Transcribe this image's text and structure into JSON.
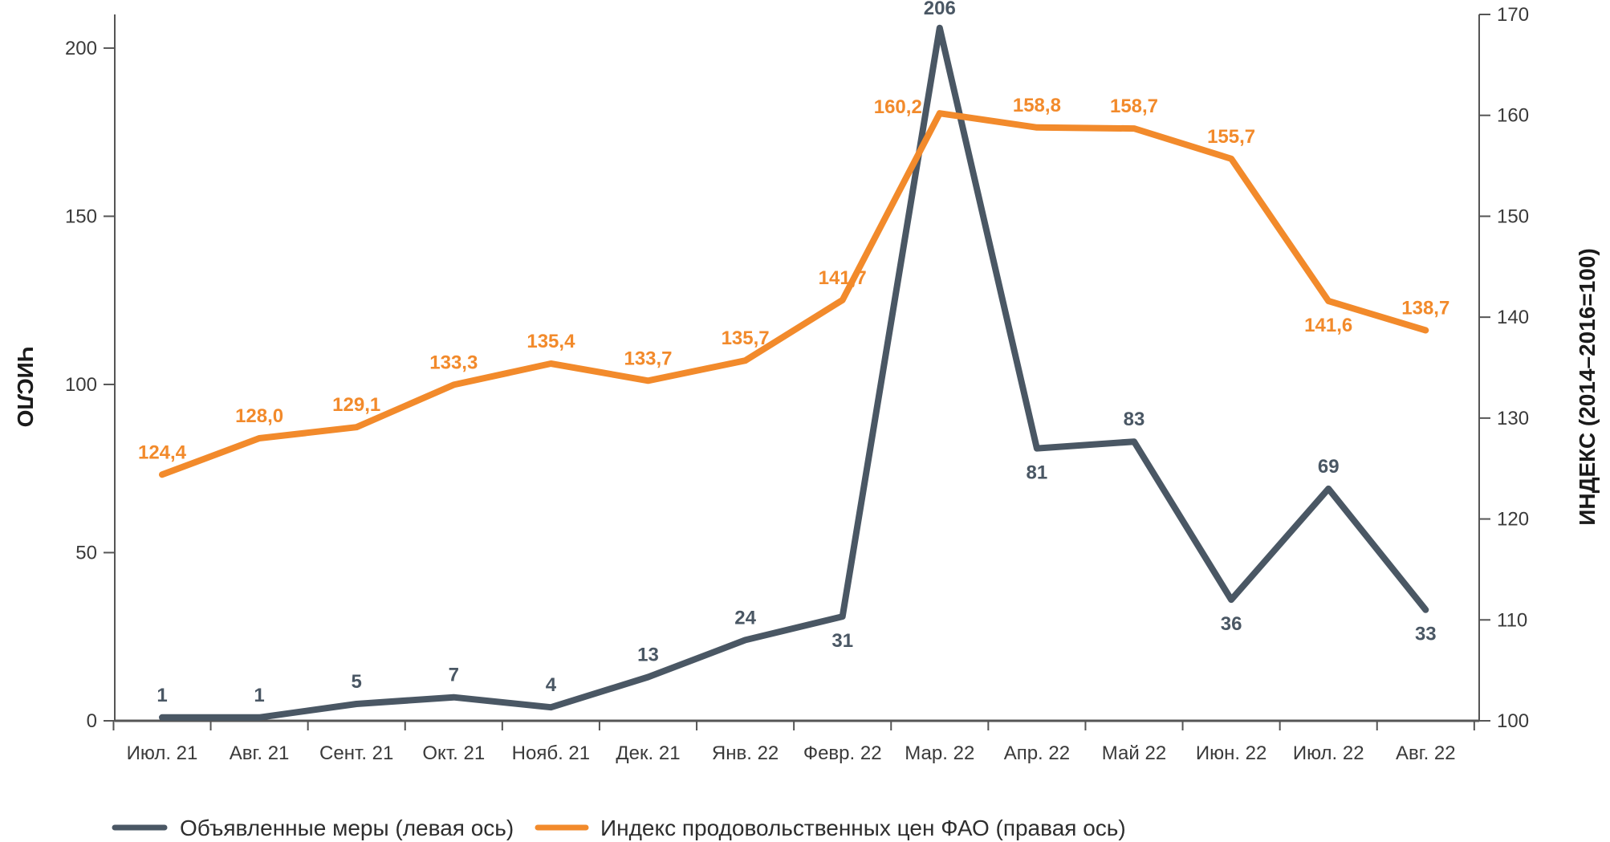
{
  "chart_data": {
    "type": "line",
    "categories": [
      "Июл. 21",
      "Авг. 21",
      "Сент. 21",
      "Окт. 21",
      "Нояб. 21",
      "Дек. 21",
      "Янв. 22",
      "Февр. 22",
      "Мар. 22",
      "Апр. 22",
      "Май 22",
      "Июн. 22",
      "Июл. 22",
      "Авг. 22"
    ],
    "series": [
      {
        "name": "Объявленные меры (левая ось)",
        "axis": "left",
        "color": "#4a5764",
        "values": [
          1,
          1,
          5,
          7,
          4,
          13,
          24,
          31,
          206,
          81,
          83,
          36,
          69,
          33
        ],
        "labels": [
          "1",
          "1",
          "5",
          "7",
          "4",
          "13",
          "24",
          "31",
          "206",
          "81",
          "83",
          "36",
          "69",
          "33"
        ],
        "label_pos": [
          "above",
          "above",
          "above",
          "above",
          "above",
          "above",
          "above",
          "below",
          "above",
          "below",
          "above",
          "below",
          "above",
          "below"
        ]
      },
      {
        "name": "Индекс продовольственных цен ФАО (правая ось)",
        "axis": "right",
        "color": "#f28a2b",
        "values": [
          124.4,
          128.0,
          129.1,
          133.3,
          135.4,
          133.7,
          135.7,
          141.7,
          160.2,
          158.8,
          158.7,
          155.7,
          141.6,
          138.7
        ],
        "labels": [
          "124,4",
          "128,0",
          "129,1",
          "133,3",
          "135,4",
          "133,7",
          "135,7",
          "141,7",
          "160,2",
          "158,8",
          "158,7",
          "155,7",
          "141,6",
          "138,7"
        ],
        "label_pos": [
          "above",
          "above",
          "above",
          "above",
          "above",
          "above",
          "above",
          "above",
          "left",
          "above",
          "above",
          "above",
          "below",
          "above"
        ]
      }
    ],
    "left_axis": {
      "title": "ЧИСЛО",
      "min": 0,
      "max": 210,
      "ticks": [
        0,
        50,
        100,
        150,
        200
      ],
      "tick_labels": [
        "0",
        "50",
        "100",
        "150",
        "200"
      ]
    },
    "right_axis": {
      "title": "ИНДЕКС (2014–2016=100)",
      "min": 100,
      "max": 170,
      "ticks": [
        100,
        110,
        120,
        130,
        140,
        150,
        160,
        170
      ],
      "tick_labels": [
        "100",
        "110",
        "120",
        "130",
        "140",
        "150",
        "160",
        "170"
      ]
    },
    "legend": {
      "placement": "bottom-left",
      "items": [
        {
          "label": "Объявленные меры (левая ось)",
          "color": "#4a5764"
        },
        {
          "label": "Индекс продовольственных цен ФАО (правая ось)",
          "color": "#f28a2b"
        }
      ]
    }
  }
}
